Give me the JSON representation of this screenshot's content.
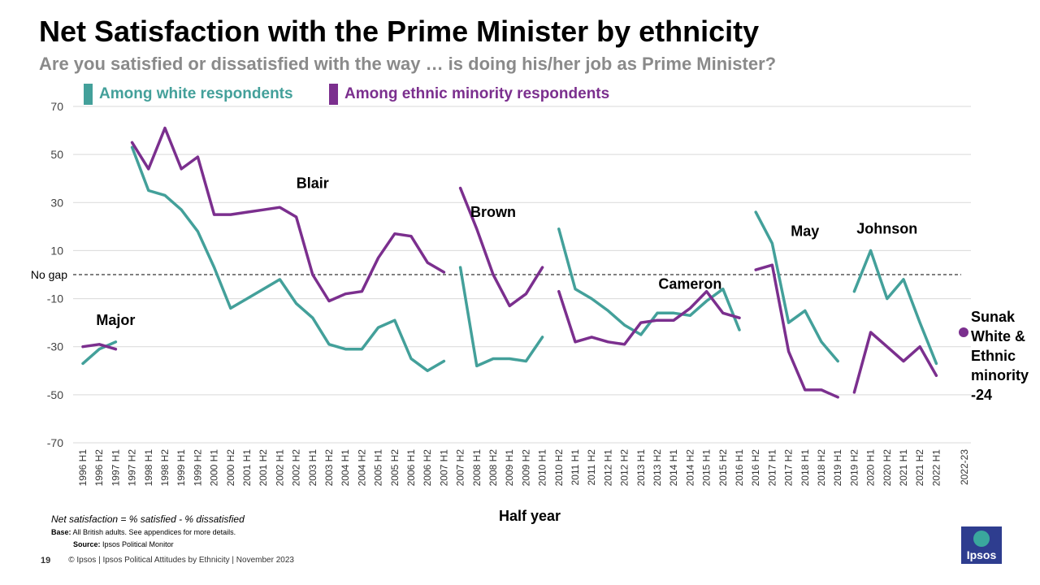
{
  "title": "Net Satisfaction with the Prime Minister by ethnicity",
  "subtitle": "Are you satisfied or dissatisfied with the way … is doing his/her job as Prime Minister?",
  "legend": {
    "white_label": "Among white respondents",
    "minority_label": "Among ethnic minority respondents"
  },
  "colors": {
    "white": "#43a09a",
    "minority": "#7b2f8e"
  },
  "notes": {
    "definition": "Net satisfaction = % satisfied - % dissatisfied",
    "base_label": "Base:",
    "base_text": "All British adults. See appendices for more details.",
    "source_label": "Source:",
    "source_text": "Ipsos Political Monitor"
  },
  "footer": {
    "page": "19",
    "copyright": "© Ipsos | Ipsos Political Attitudes by Ethnicity | November 2023"
  },
  "logo_text": "Ipsos",
  "chart_data": {
    "type": "line",
    "xlabel": "Half year",
    "ylabel": "",
    "ylim": [
      -70,
      70
    ],
    "yticks": [
      70,
      50,
      30,
      10,
      -10,
      -30,
      -50,
      -70
    ],
    "reference_line": {
      "value": 0,
      "label": "No gap"
    },
    "categories": [
      "1996 H1",
      "1996 H2",
      "1997 H1",
      "1997 H2",
      "1998 H1",
      "1998 H2",
      "1999 H1",
      "1999 H2",
      "2000 H1",
      "2000 H2",
      "2001 H1",
      "2001 H2",
      "2002 H1",
      "2002 H2",
      "2003 H1",
      "2003 H2",
      "2004 H1",
      "2004 H2",
      "2005 H1",
      "2005 H2",
      "2006 H1",
      "2006 H2",
      "2007 H1",
      "2007 H2",
      "2008 H1",
      "2008 H2",
      "2009 H1",
      "2009 H2",
      "2010 H1",
      "2010 H2",
      "2011 H1",
      "2011 H2",
      "2012 H1",
      "2012 H2",
      "2013 H1",
      "2013 H2",
      "2014 H1",
      "2014 H2",
      "2015 H1",
      "2015 H2",
      "2016 H1",
      "2016 H2",
      "2017 H1",
      "2017 H2",
      "2018 H1",
      "2018 H2",
      "2019 H1",
      "2019 H2",
      "2020 H1",
      "2020 H2",
      "2021 H1",
      "2021 H2",
      "2022 H1",
      "2022-23"
    ],
    "series": [
      {
        "name": "Among white respondents",
        "segments": [
          {
            "start": 0,
            "values": [
              -37,
              -31,
              -28
            ]
          },
          {
            "start": 3,
            "values": [
              53,
              35,
              33,
              27,
              18,
              3,
              -14,
              -10,
              -6,
              -2,
              -12,
              -18,
              -29,
              -31,
              -31,
              -22,
              -19,
              -35,
              -40,
              -36
            ]
          },
          {
            "start": 23,
            "values": [
              3,
              -38,
              -35,
              -35,
              -36,
              -26
            ]
          },
          {
            "start": 29,
            "values": [
              19,
              -6,
              -10,
              -15,
              -21,
              -25,
              -16,
              -16,
              -17,
              -11,
              -6,
              -23
            ]
          },
          {
            "start": 41,
            "values": [
              26,
              13,
              -20,
              -15,
              -28,
              -36
            ]
          },
          {
            "start": 47,
            "values": [
              -7,
              10,
              -10,
              -2,
              -20,
              -37
            ]
          }
        ]
      },
      {
        "name": "Among ethnic minority respondents",
        "segments": [
          {
            "start": 0,
            "values": [
              -30,
              -29,
              -31
            ]
          },
          {
            "start": 3,
            "values": [
              55,
              44,
              61,
              44,
              49,
              25,
              25,
              26,
              27,
              28,
              24,
              0,
              -11,
              -8,
              -7,
              7,
              17,
              16,
              5,
              1
            ]
          },
          {
            "start": 23,
            "values": [
              36,
              19,
              0,
              -13,
              -8,
              3
            ]
          },
          {
            "start": 29,
            "values": [
              -7,
              -28,
              -26,
              -28,
              -29,
              -20,
              -19,
              -19,
              -14,
              -7,
              -16,
              -18
            ]
          },
          {
            "start": 41,
            "values": [
              2,
              4,
              -32,
              -48,
              -48,
              -51
            ]
          },
          {
            "start": 47,
            "values": [
              -49,
              -24,
              -30,
              -36,
              -30,
              -42
            ]
          }
        ]
      }
    ],
    "single_points": [
      {
        "series": "Sunak (white & ethnic minority)",
        "category": "2022-23",
        "value": -24
      }
    ],
    "annotations": [
      {
        "text": "Major",
        "near": "1997 H1",
        "value": -21
      },
      {
        "text": "Blair",
        "near": "2003 H1",
        "value": 36
      },
      {
        "text": "Brown",
        "near": "2008 H2",
        "value": 24
      },
      {
        "text": "Cameron",
        "near": "2014 H2",
        "value": -6
      },
      {
        "text": "May",
        "near": "2018 H1",
        "value": 16
      },
      {
        "text": "Johnson",
        "near": "2020 H2",
        "value": 17
      }
    ],
    "sunak_label": [
      "Sunak",
      "White &",
      "Ethnic",
      "minority",
      "-24"
    ]
  }
}
